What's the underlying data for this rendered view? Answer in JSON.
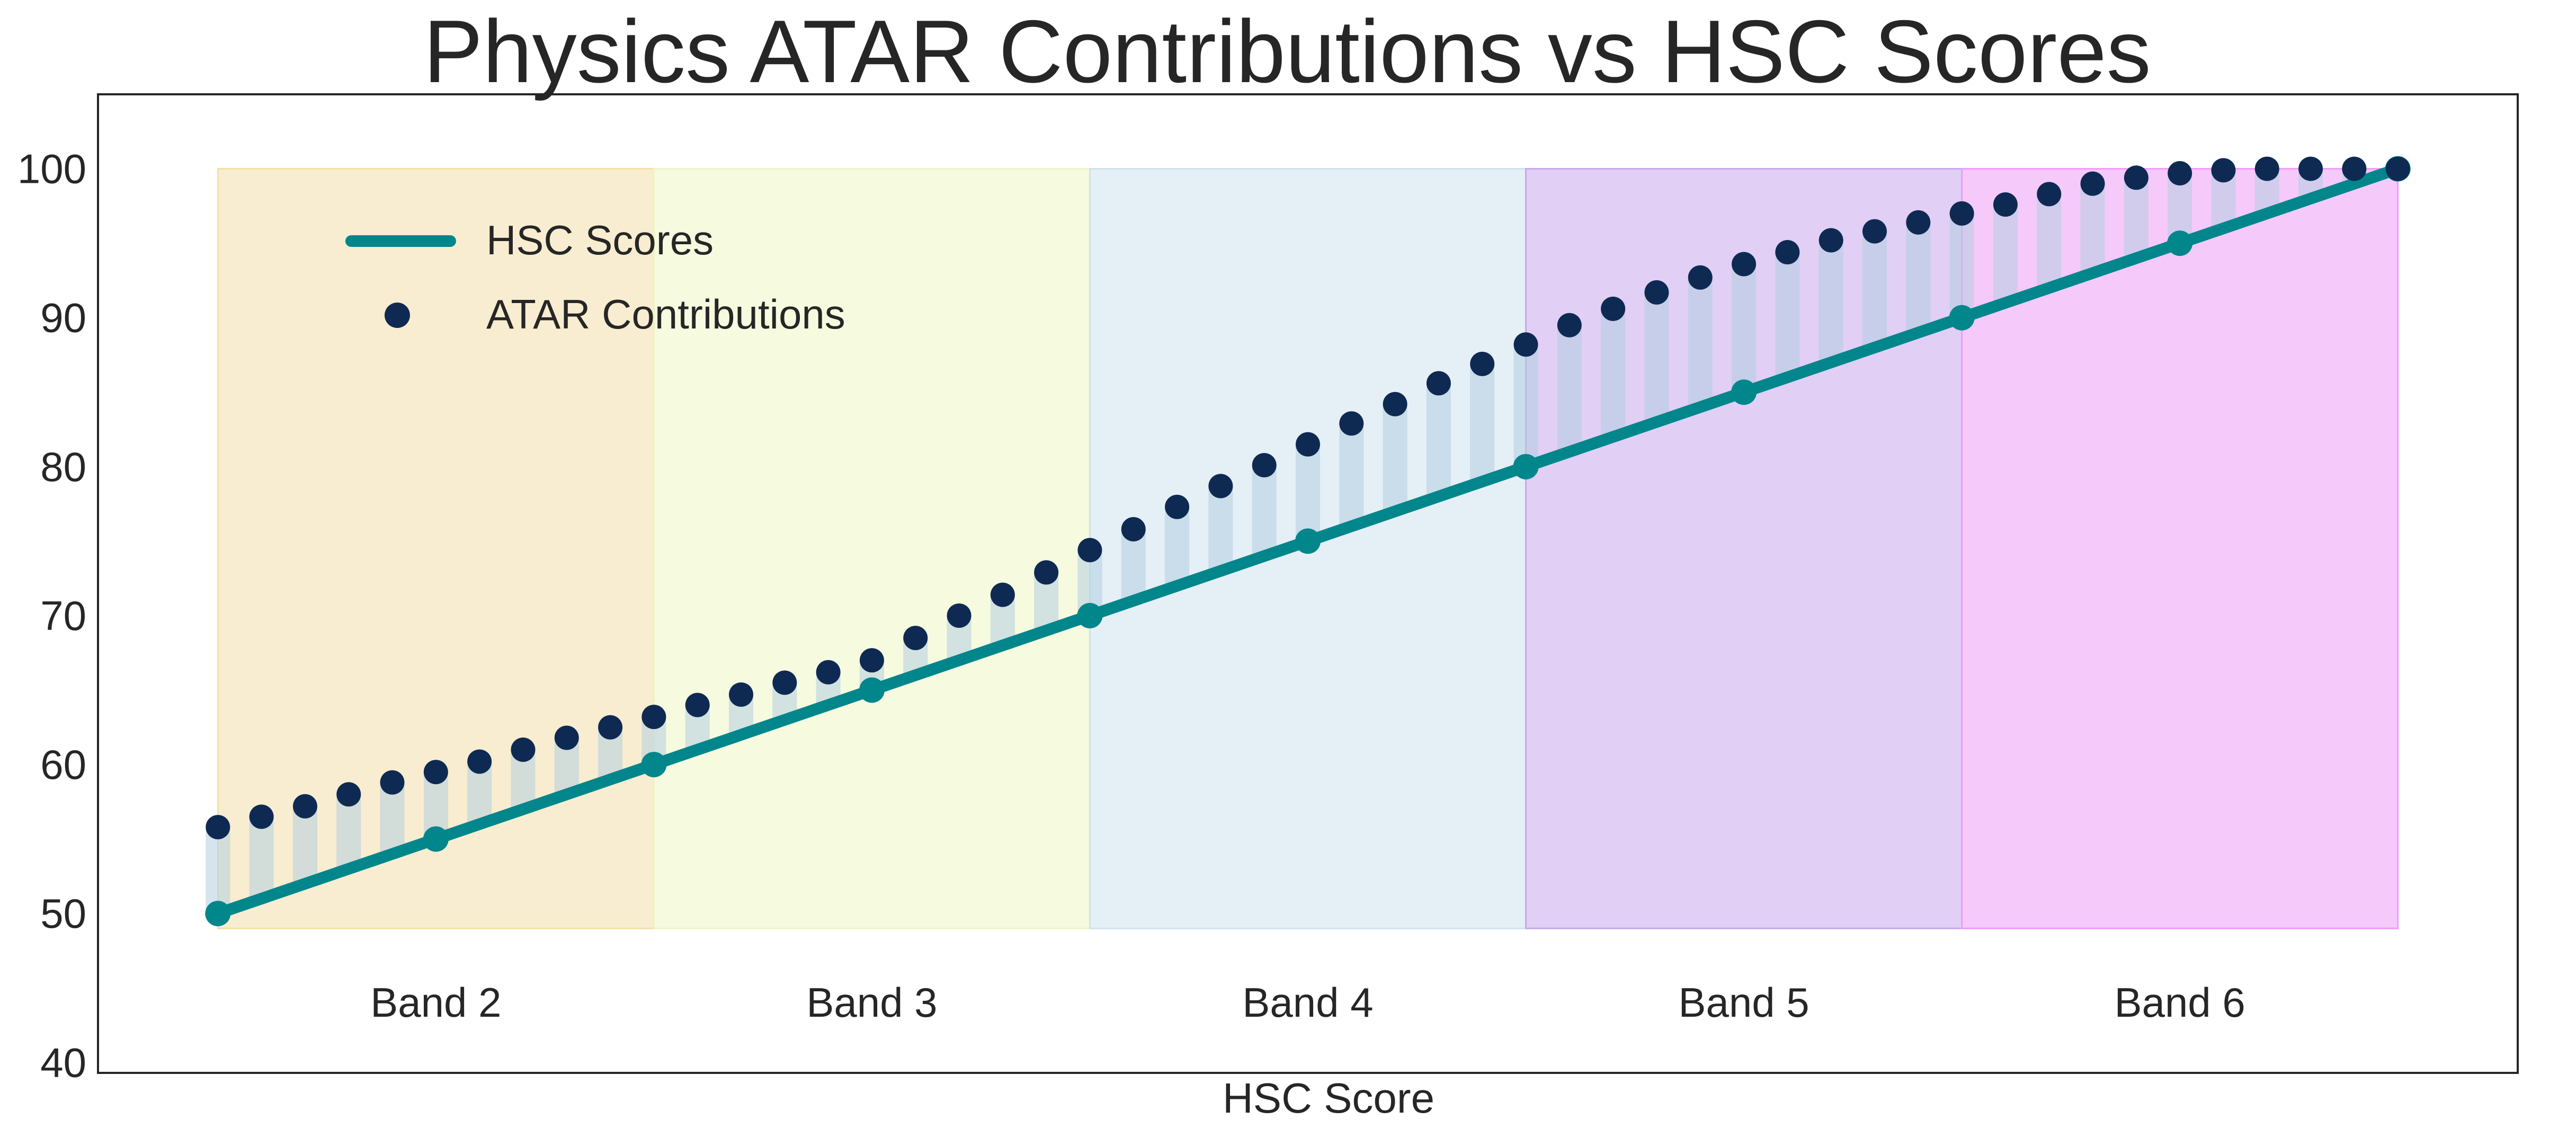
{
  "chart_data": {
    "type": "line",
    "title": "Physics ATAR Contributions vs HSC Scores",
    "xlabel": "HSC Score",
    "ylabel": "",
    "xlim": [
      47.25,
      102.75
    ],
    "ylim": [
      39.3,
      105
    ],
    "yticks": [
      40,
      50,
      60,
      70,
      80,
      90,
      100
    ],
    "grid": false,
    "legend_position": "upper-left",
    "colors": {
      "hsc_line": "#00868b",
      "atar_points": "#0e2a52",
      "stem": "#b3cde0"
    },
    "bands": [
      {
        "label": "Band 2",
        "x0": 50,
        "x1": 60,
        "y0": 49,
        "y1": 100,
        "color": "#f3dfa9"
      },
      {
        "label": "Band 3",
        "x0": 60,
        "x1": 70,
        "y0": 49,
        "y1": 100,
        "color": "#eef5c4"
      },
      {
        "label": "Band 4",
        "x0": 70,
        "x1": 80,
        "y0": 49,
        "y1": 100,
        "color": "#cfe2ef"
      },
      {
        "label": "Band 5",
        "x0": 80,
        "x1": 90,
        "y0": 49,
        "y1": 100,
        "color": "#c8a8ec"
      },
      {
        "label": "Band 6",
        "x0": 90,
        "x1": 100,
        "y0": 49,
        "y1": 100,
        "color": "#ef9cf7"
      }
    ],
    "band_label_y": 44,
    "series": [
      {
        "name": "HSC Scores",
        "type": "line",
        "x": [
          50,
          55,
          60,
          65,
          70,
          75,
          80,
          85,
          90,
          95,
          100
        ],
        "values": [
          50,
          55,
          60,
          65,
          70,
          75,
          80,
          85,
          90,
          95,
          100
        ]
      },
      {
        "name": "ATAR Contributions",
        "type": "scatter",
        "x": [
          50,
          51,
          52,
          53,
          54,
          55,
          56,
          57,
          58,
          59,
          60,
          61,
          62,
          63,
          64,
          65,
          66,
          67,
          68,
          69,
          70,
          71,
          72,
          73,
          74,
          75,
          76,
          77,
          78,
          79,
          80,
          81,
          82,
          83,
          84,
          85,
          86,
          87,
          88,
          89,
          90,
          91,
          92,
          93,
          94,
          95,
          96,
          97,
          98,
          99,
          100
        ],
        "values": [
          55.8,
          56.5,
          57.2,
          58.0,
          58.8,
          59.5,
          60.2,
          61.0,
          61.8,
          62.5,
          63.2,
          64.0,
          64.7,
          65.5,
          66.2,
          67.0,
          68.5,
          70.0,
          71.4,
          72.9,
          74.4,
          75.8,
          77.3,
          78.7,
          80.1,
          81.5,
          82.9,
          84.2,
          85.6,
          86.9,
          88.2,
          89.5,
          90.6,
          91.7,
          92.7,
          93.6,
          94.4,
          95.2,
          95.8,
          96.4,
          97.0,
          97.6,
          98.3,
          99.0,
          99.4,
          99.7,
          99.9,
          100.0,
          100.0,
          100.0,
          100.0
        ]
      }
    ]
  }
}
